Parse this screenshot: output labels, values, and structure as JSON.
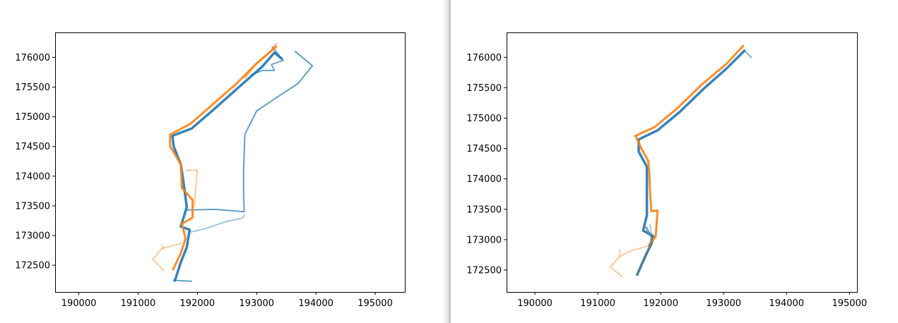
{
  "window": {
    "divider": "vertical-split"
  },
  "colors": {
    "series1": "#1f77b4",
    "series2": "#ff7f0e",
    "axes": "#000000",
    "background": "#ffffff"
  },
  "chart_data": [
    {
      "type": "line",
      "title": "",
      "xlabel": "",
      "ylabel": "",
      "xlim": [
        189600,
        195500
      ],
      "ylim": [
        172050,
        176420
      ],
      "grid": false,
      "legend": "none",
      "xticks": [
        190000,
        191000,
        192000,
        193000,
        194000,
        195000
      ],
      "xtick_labels": [
        "190000",
        "191000",
        "192000",
        "193000",
        "194000",
        "195000"
      ],
      "yticks": [
        172500,
        173000,
        173500,
        174000,
        174500,
        175000,
        175500,
        176000
      ],
      "ytick_labels": [
        "172500",
        "173000",
        "173500",
        "174000",
        "174500",
        "175000",
        "175500",
        "176000"
      ],
      "series": [
        {
          "color": "#1f77b4",
          "opacity": 0.9,
          "width": 3.5,
          "points": [
            [
              191620,
              172240
            ],
            [
              191720,
              172550
            ],
            [
              191820,
              172800
            ],
            [
              191870,
              173100
            ],
            [
              191720,
              173150
            ],
            [
              191820,
              173480
            ],
            [
              191780,
              173800
            ],
            [
              191720,
              174200
            ],
            [
              191600,
              174500
            ],
            [
              191580,
              174680
            ],
            [
              191900,
              174800
            ],
            [
              192250,
              175100
            ],
            [
              192700,
              175500
            ],
            [
              193100,
              175850
            ],
            [
              193300,
              176080
            ],
            [
              193420,
              175980
            ]
          ]
        },
        {
          "color": "#1f77b4",
          "opacity": 0.7,
          "width": 2,
          "points": [
            [
              191600,
              172250
            ],
            [
              191700,
              172240
            ],
            [
              191900,
              172230
            ]
          ]
        },
        {
          "color": "#1f77b4",
          "opacity": 0.7,
          "width": 2,
          "points": [
            [
              191800,
              173430
            ],
            [
              192300,
              173440
            ],
            [
              192790,
              173400
            ],
            [
              192780,
              173720
            ],
            [
              192780,
              174100
            ],
            [
              192800,
              174700
            ],
            [
              193000,
              175100
            ],
            [
              193300,
              175300
            ],
            [
              193700,
              175560
            ],
            [
              193940,
              175860
            ],
            [
              193650,
              176100
            ]
          ]
        },
        {
          "color": "#1f77b4",
          "opacity": 0.5,
          "width": 1.6,
          "points": [
            [
              191850,
              173050
            ],
            [
              192150,
              173120
            ],
            [
              192500,
              173240
            ],
            [
              192750,
              173290
            ],
            [
              192800,
              173350
            ]
          ]
        },
        {
          "color": "#1f77b4",
          "opacity": 0.8,
          "width": 1.6,
          "points": [
            [
              192900,
              175700
            ],
            [
              193100,
              175780
            ],
            [
              193300,
              175780
            ],
            [
              193250,
              175880
            ],
            [
              193450,
              175950
            ],
            [
              193260,
              176180
            ]
          ]
        },
        {
          "color": "#ff7f0e",
          "opacity": 0.9,
          "width": 3,
          "points": [
            [
              191590,
              172430
            ],
            [
              191720,
              172700
            ],
            [
              191800,
              172950
            ],
            [
              191740,
              173200
            ],
            [
              191920,
              173300
            ],
            [
              191920,
              173600
            ],
            [
              191740,
              173800
            ],
            [
              191720,
              174200
            ],
            [
              191540,
              174500
            ],
            [
              191540,
              174700
            ],
            [
              191880,
              174880
            ],
            [
              192250,
              175200
            ],
            [
              192650,
              175550
            ],
            [
              193000,
              175900
            ],
            [
              193330,
              176180
            ]
          ]
        },
        {
          "color": "#ff7f0e",
          "opacity": 0.5,
          "width": 1.6,
          "points": [
            [
              191740,
              172870
            ],
            [
              191400,
              172780
            ],
            [
              191250,
              172600
            ],
            [
              191420,
              172420
            ]
          ]
        },
        {
          "color": "#ff7f0e",
          "opacity": 0.5,
          "width": 1.6,
          "points": [
            [
              191400,
              172840
            ],
            [
              191430,
              172790
            ]
          ]
        },
        {
          "color": "#ff7f0e",
          "opacity": 0.5,
          "width": 1.6,
          "points": [
            [
              191810,
              174100
            ],
            [
              192000,
              174100
            ],
            [
              191980,
              173900
            ],
            [
              191950,
              173500
            ]
          ]
        },
        {
          "color": "#ff7f0e",
          "opacity": 0.7,
          "width": 1.8,
          "points": [
            [
              192800,
              175650
            ],
            [
              193000,
              175900
            ],
            [
              193200,
              176060
            ],
            [
              193330,
              176230
            ]
          ]
        }
      ]
    },
    {
      "type": "line",
      "title": "",
      "xlabel": "",
      "ylabel": "",
      "xlim": [
        189550,
        195120
      ],
      "ylim": [
        172140,
        176410
      ],
      "grid": false,
      "legend": "none",
      "xticks": [
        190000,
        191000,
        192000,
        193000,
        194000,
        195000
      ],
      "xtick_labels": [
        "190000",
        "191000",
        "192000",
        "193000",
        "194000",
        "195000"
      ],
      "yticks": [
        172500,
        173000,
        173500,
        174000,
        174500,
        175000,
        175500,
        176000
      ],
      "ytick_labels": [
        "172500",
        "173000",
        "173500",
        "174000",
        "174500",
        "175000",
        "175500",
        "176000"
      ],
      "series": [
        {
          "color": "#1f77b4",
          "opacity": 0.9,
          "width": 3.5,
          "points": [
            [
              191630,
              172430
            ],
            [
              191750,
              172720
            ],
            [
              191860,
              172950
            ],
            [
              191880,
              173060
            ],
            [
              191720,
              173150
            ],
            [
              191780,
              173400
            ],
            [
              191780,
              173800
            ],
            [
              191780,
              174200
            ],
            [
              191650,
              174450
            ],
            [
              191650,
              174650
            ],
            [
              191950,
              174800
            ],
            [
              192300,
              175100
            ],
            [
              192700,
              175500
            ],
            [
              193050,
              175820
            ],
            [
              193330,
              176110
            ]
          ]
        },
        {
          "color": "#1f77b4",
          "opacity": 0.7,
          "width": 1.6,
          "points": [
            [
              193330,
              176110
            ],
            [
              193440,
              176000
            ]
          ]
        },
        {
          "color": "#1f77b4",
          "opacity": 0.5,
          "width": 1.6,
          "points": [
            [
              191660,
              172500
            ],
            [
              191800,
              172800
            ],
            [
              191870,
              173000
            ],
            [
              191830,
              173250
            ]
          ]
        },
        {
          "color": "#ff7f0e",
          "opacity": 0.9,
          "width": 3,
          "points": [
            [
              191600,
              174710
            ],
            [
              191700,
              174480
            ],
            [
              191800,
              174300
            ],
            [
              191820,
              174100
            ],
            [
              191830,
              173800
            ],
            [
              191850,
              173470
            ],
            [
              191950,
              173480
            ],
            [
              191920,
              173050
            ],
            [
              191840,
              172950
            ],
            [
              191810,
              172900
            ]
          ]
        },
        {
          "color": "#ff7f0e",
          "opacity": 0.9,
          "width": 3,
          "points": [
            [
              191600,
              174710
            ],
            [
              191900,
              174850
            ],
            [
              192250,
              175150
            ],
            [
              192650,
              175550
            ],
            [
              193050,
              175900
            ],
            [
              193310,
              176190
            ]
          ]
        },
        {
          "color": "#ff7f0e",
          "opacity": 0.5,
          "width": 1.6,
          "points": [
            [
              191810,
              172900
            ],
            [
              191500,
              172810
            ],
            [
              191350,
              172720
            ],
            [
              191200,
              172550
            ],
            [
              191390,
              172390
            ]
          ]
        },
        {
          "color": "#ff7f0e",
          "opacity": 0.5,
          "width": 1.6,
          "points": [
            [
              191350,
              172720
            ],
            [
              191350,
              172830
            ]
          ]
        },
        {
          "color": "#607d8b",
          "opacity": 0.75,
          "width": 3,
          "points": [
            [
              191620,
              172420
            ],
            [
              191750,
              172700
            ],
            [
              191850,
              172950
            ],
            [
              191850,
              173050
            ],
            [
              191770,
              173200
            ]
          ]
        }
      ]
    }
  ]
}
